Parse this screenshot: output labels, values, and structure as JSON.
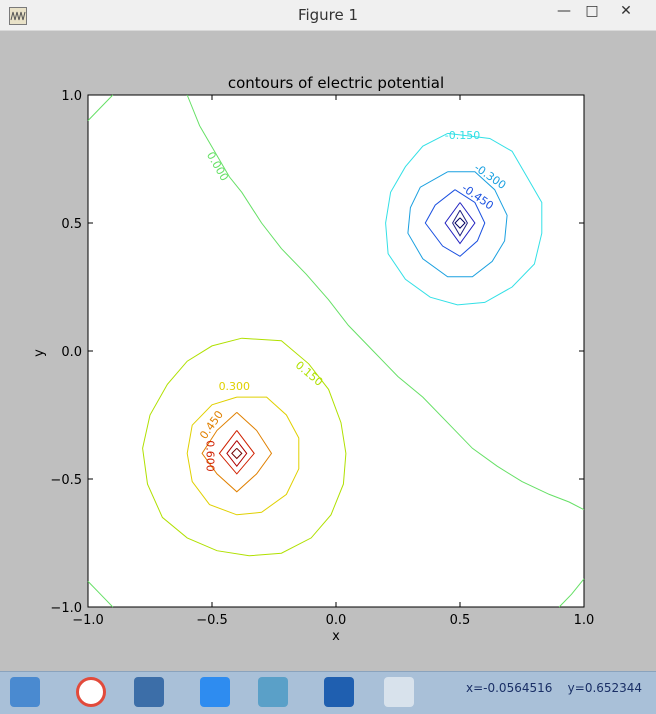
{
  "window": {
    "title": "Figure 1",
    "minimize": "—",
    "maximize": "□",
    "close": "✕"
  },
  "status": {
    "x_label": "x=-0.0564516",
    "y_label": "y=0.652344"
  },
  "taskbar": {
    "items": [
      "explorer-icon",
      "chrome-icon",
      "python-icon",
      "wps-icon",
      "image-viewer-icon",
      "autodesk-icon",
      "figure-thumbnail-icon"
    ]
  },
  "chart_data": {
    "type": "contour",
    "title": "contours of electric potential",
    "xlabel": "x",
    "ylabel": "y",
    "xlim": [
      -1.0,
      1.0
    ],
    "ylim": [
      -1.0,
      1.0
    ],
    "xticks": [
      "−1.0",
      "−0.5",
      "0.0",
      "0.5",
      "1.0"
    ],
    "yticks": [
      "−1.0",
      "−0.5",
      "0.0",
      "0.5",
      "1.0"
    ],
    "xtick_values": [
      -1.0,
      -0.5,
      0.0,
      0.5,
      1.0
    ],
    "ytick_values": [
      -1.0,
      -0.5,
      0.0,
      0.5,
      1.0
    ],
    "grid": false,
    "contour_labels": [
      {
        "text": "-0.150",
        "x": 0.51,
        "y": 0.84,
        "color": "#33e0e6",
        "angle": 0
      },
      {
        "text": "-0.300",
        "x": 0.62,
        "y": 0.68,
        "color": "#1aa0e0",
        "angle": 35
      },
      {
        "text": "-0.450",
        "x": 0.57,
        "y": 0.6,
        "color": "#1a50e0",
        "angle": 35
      },
      {
        "text": "0.000",
        "x": -0.48,
        "y": 0.72,
        "color": "#66e066",
        "angle": 60
      },
      {
        "text": "0.150",
        "x": -0.11,
        "y": -0.09,
        "color": "#b0e000",
        "angle": 40
      },
      {
        "text": "0.300",
        "x": -0.41,
        "y": -0.14,
        "color": "#e0d000",
        "angle": 0
      },
      {
        "text": "0.450",
        "x": -0.5,
        "y": -0.29,
        "color": "#e08000",
        "angle": -55
      },
      {
        "text": "0.600",
        "x": -0.51,
        "y": -0.41,
        "color": "#d02000",
        "angle": 90
      }
    ],
    "contours": [
      {
        "level": -0.15,
        "color": "#33e0e6",
        "points": [
          [
            0.45,
            0.85
          ],
          [
            0.62,
            0.83
          ],
          [
            0.71,
            0.78
          ],
          [
            0.77,
            0.68
          ],
          [
            0.83,
            0.58
          ],
          [
            0.83,
            0.46
          ],
          [
            0.8,
            0.34
          ],
          [
            0.71,
            0.25
          ],
          [
            0.6,
            0.19
          ],
          [
            0.49,
            0.18
          ],
          [
            0.38,
            0.21
          ],
          [
            0.28,
            0.28
          ],
          [
            0.21,
            0.38
          ],
          [
            0.2,
            0.5
          ],
          [
            0.22,
            0.62
          ],
          [
            0.28,
            0.72
          ],
          [
            0.35,
            0.8
          ],
          [
            0.45,
            0.85
          ]
        ]
      },
      {
        "level": -0.3,
        "color": "#1aa0e0",
        "points": [
          [
            0.45,
            0.7
          ],
          [
            0.56,
            0.7
          ],
          [
            0.64,
            0.63
          ],
          [
            0.69,
            0.53
          ],
          [
            0.68,
            0.43
          ],
          [
            0.63,
            0.35
          ],
          [
            0.55,
            0.29
          ],
          [
            0.45,
            0.29
          ],
          [
            0.35,
            0.36
          ],
          [
            0.29,
            0.46
          ],
          [
            0.3,
            0.56
          ],
          [
            0.34,
            0.64
          ],
          [
            0.45,
            0.7
          ]
        ]
      },
      {
        "level": -0.45,
        "color": "#1a50e0",
        "points": [
          [
            0.48,
            0.63
          ],
          [
            0.56,
            0.58
          ],
          [
            0.6,
            0.5
          ],
          [
            0.57,
            0.43
          ],
          [
            0.5,
            0.37
          ],
          [
            0.43,
            0.41
          ],
          [
            0.36,
            0.5
          ],
          [
            0.4,
            0.57
          ],
          [
            0.48,
            0.63
          ]
        ]
      },
      {
        "level": -0.6,
        "color": "#2020c0",
        "points": [
          [
            0.5,
            0.58
          ],
          [
            0.56,
            0.5
          ],
          [
            0.5,
            0.42
          ],
          [
            0.44,
            0.5
          ],
          [
            0.5,
            0.58
          ]
        ]
      },
      {
        "level": -0.75,
        "color": "#202080",
        "points": [
          [
            0.5,
            0.55
          ],
          [
            0.53,
            0.5
          ],
          [
            0.5,
            0.45
          ],
          [
            0.47,
            0.5
          ],
          [
            0.5,
            0.55
          ]
        ]
      },
      {
        "level": -0.9,
        "color": "#000060",
        "points": [
          [
            0.5,
            0.52
          ],
          [
            0.52,
            0.5
          ],
          [
            0.5,
            0.48
          ],
          [
            0.48,
            0.5
          ],
          [
            0.5,
            0.52
          ]
        ]
      },
      {
        "level": 0.0,
        "color": "#66e066",
        "points": [
          [
            -1.0,
            0.9
          ],
          [
            -0.96,
            0.94
          ],
          [
            -0.9,
            1.0
          ]
        ]
      },
      {
        "level": 0.0,
        "color": "#66e066",
        "points": [
          [
            -0.6,
            1.0
          ],
          [
            -0.55,
            0.88
          ],
          [
            -0.43,
            0.68
          ],
          [
            -0.38,
            0.62
          ],
          [
            -0.3,
            0.5
          ],
          [
            -0.22,
            0.4
          ],
          [
            -0.12,
            0.3
          ],
          [
            -0.03,
            0.2
          ],
          [
            0.05,
            0.1
          ],
          [
            0.15,
            0.0
          ],
          [
            0.25,
            -0.1
          ],
          [
            0.35,
            -0.18
          ],
          [
            0.45,
            -0.28
          ],
          [
            0.55,
            -0.38
          ],
          [
            0.65,
            -0.45
          ],
          [
            0.75,
            -0.51
          ],
          [
            0.86,
            -0.56
          ],
          [
            0.94,
            -0.59
          ],
          [
            1.0,
            -0.62
          ]
        ]
      },
      {
        "level": 0.0,
        "color": "#66e066",
        "points": [
          [
            -1.0,
            -0.9
          ],
          [
            -0.93,
            -0.97
          ],
          [
            -0.9,
            -1.0
          ]
        ]
      },
      {
        "level": 0.0,
        "color": "#66e066",
        "points": [
          [
            0.9,
            -1.0
          ],
          [
            0.95,
            -0.95
          ],
          [
            1.0,
            -0.89
          ]
        ]
      },
      {
        "level": 0.15,
        "color": "#b0e000",
        "points": [
          [
            -0.38,
            0.05
          ],
          [
            -0.22,
            0.04
          ],
          [
            -0.11,
            -0.05
          ],
          [
            -0.03,
            -0.15
          ],
          [
            0.02,
            -0.28
          ],
          [
            0.04,
            -0.4
          ],
          [
            0.03,
            -0.52
          ],
          [
            -0.02,
            -0.64
          ],
          [
            -0.1,
            -0.73
          ],
          [
            -0.22,
            -0.79
          ],
          [
            -0.35,
            -0.8
          ],
          [
            -0.48,
            -0.78
          ],
          [
            -0.6,
            -0.73
          ],
          [
            -0.7,
            -0.65
          ],
          [
            -0.76,
            -0.52
          ],
          [
            -0.78,
            -0.38
          ],
          [
            -0.75,
            -0.25
          ],
          [
            -0.68,
            -0.13
          ],
          [
            -0.6,
            -0.04
          ],
          [
            -0.5,
            0.02
          ],
          [
            -0.38,
            0.05
          ]
        ]
      },
      {
        "level": 0.3,
        "color": "#e0d000",
        "points": [
          [
            -0.4,
            -0.18
          ],
          [
            -0.28,
            -0.18
          ],
          [
            -0.2,
            -0.25
          ],
          [
            -0.15,
            -0.34
          ],
          [
            -0.15,
            -0.46
          ],
          [
            -0.2,
            -0.56
          ],
          [
            -0.3,
            -0.63
          ],
          [
            -0.4,
            -0.64
          ],
          [
            -0.51,
            -0.6
          ],
          [
            -0.58,
            -0.51
          ],
          [
            -0.6,
            -0.4
          ],
          [
            -0.58,
            -0.29
          ],
          [
            -0.5,
            -0.21
          ],
          [
            -0.4,
            -0.18
          ]
        ]
      },
      {
        "level": 0.45,
        "color": "#e08000",
        "points": [
          [
            -0.4,
            -0.24
          ],
          [
            -0.32,
            -0.31
          ],
          [
            -0.26,
            -0.4
          ],
          [
            -0.32,
            -0.48
          ],
          [
            -0.4,
            -0.55
          ],
          [
            -0.48,
            -0.48
          ],
          [
            -0.54,
            -0.4
          ],
          [
            -0.48,
            -0.31
          ],
          [
            -0.4,
            -0.24
          ]
        ]
      },
      {
        "level": 0.6,
        "color": "#d02000",
        "points": [
          [
            -0.4,
            -0.31
          ],
          [
            -0.33,
            -0.4
          ],
          [
            -0.4,
            -0.48
          ],
          [
            -0.47,
            -0.4
          ],
          [
            -0.4,
            -0.31
          ]
        ]
      },
      {
        "level": 0.75,
        "color": "#b00000",
        "points": [
          [
            -0.4,
            -0.35
          ],
          [
            -0.36,
            -0.4
          ],
          [
            -0.4,
            -0.45
          ],
          [
            -0.44,
            -0.4
          ],
          [
            -0.4,
            -0.35
          ]
        ]
      },
      {
        "level": 0.9,
        "color": "#700000",
        "points": [
          [
            -0.4,
            -0.38
          ],
          [
            -0.38,
            -0.4
          ],
          [
            -0.4,
            -0.42
          ],
          [
            -0.42,
            -0.4
          ],
          [
            -0.4,
            -0.38
          ]
        ]
      }
    ]
  }
}
